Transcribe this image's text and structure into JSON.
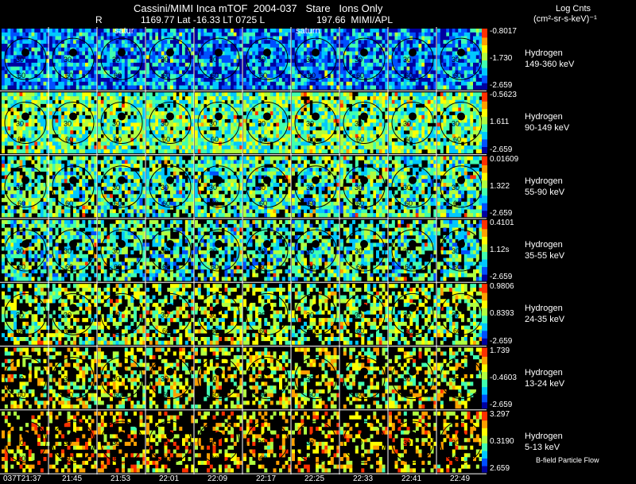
{
  "header": {
    "title": "Cassini/MIMI Inca mTOF  2004-037   Stare   Ions Only",
    "info_r": "R",
    "info_vals": "1169.77 Lat -16.33 LT 0725 L",
    "info_right": "197.66  MIMI/APL",
    "units_line1": "Log Cnts",
    "units_line2": "(cm²-sr-s-keV)⁻¹",
    "saturn_marker_1": "satur",
    "saturn_marker_2": "saturn",
    "footer_note": "B-field Particle Flow"
  },
  "chart_data": {
    "type": "heatmap",
    "rows": [
      {
        "species": "Hydrogen",
        "energy": "149-360 keV",
        "max": "-0.8017",
        "mid": "-1.730",
        "min": "-2.659",
        "level": 0.22
      },
      {
        "species": "Hydrogen",
        "energy": "90-149 keV",
        "max": "-0.5623",
        "mid": "1.611",
        "min": "-2.659",
        "level": 0.48
      },
      {
        "species": "Hydrogen",
        "energy": "55-90 keV",
        "max": "0.01609",
        "mid": "1.322",
        "min": "-2.659",
        "level": 0.44
      },
      {
        "species": "Hydrogen",
        "energy": "35-55 keV",
        "max": "0.4101",
        "mid": "1.12s",
        "min": "-2.659",
        "level": 0.42
      },
      {
        "species": "Hydrogen",
        "energy": "24-35 keV",
        "max": "0.9806",
        "mid": "0.8393",
        "min": "-2.659",
        "level": 0.55
      },
      {
        "species": "Hydrogen",
        "energy": "13-24 keV",
        "max": "1.739",
        "mid": "-0.4603",
        "min": "-2.659",
        "level": 0.62
      },
      {
        "species": "Hydrogen",
        "energy": "5-13 keV",
        "max": "3.297",
        "mid": "0.3190",
        "min": "2.659",
        "level": 0.72
      }
    ],
    "times": [
      "037T21:37",
      "21:45",
      "21:53",
      "22:01",
      "22:09",
      "22:17",
      "22:25",
      "22:33",
      "22:41",
      "22:49"
    ],
    "contour_labels": [
      "30",
      "60"
    ],
    "colorscale": [
      "#0000a0",
      "#0050ff",
      "#00c8ff",
      "#40ffb0",
      "#b0ff40",
      "#ffff00",
      "#ffa000",
      "#ff3000",
      "#c00000"
    ]
  }
}
